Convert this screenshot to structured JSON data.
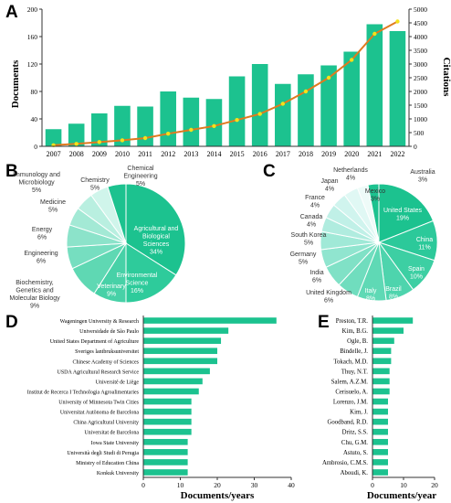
{
  "colors": {
    "bar": "#1cc28f",
    "line": "#e07a1f",
    "marker": "#f4e11a",
    "axis": "#333333",
    "pie_b": [
      "#1cc28f",
      "#2ecb9b",
      "#47d1a7",
      "#5fd8b3",
      "#76dec0",
      "#8ce3ca",
      "#a3e9d5",
      "#b9efe0",
      "#d0f5eb"
    ],
    "pie_c": [
      "#1cc28f",
      "#2cc99a",
      "#3dcfa3",
      "#4ed4ad",
      "#5fd9b5",
      "#70ddbe",
      "#80e1c6",
      "#90e5cf",
      "#a0e9d7",
      "#b0ecdf",
      "#c0f0e7",
      "#d0f4ee",
      "#e0f8f4",
      "#eefbf8"
    ]
  },
  "panel_labels": {
    "a": "A",
    "b": "B",
    "c": "C",
    "d": "D",
    "e": "E"
  },
  "chart_data": [
    {
      "id": "A",
      "type": "bar",
      "categories": [
        "2007",
        "2008",
        "2009",
        "2010",
        "2011",
        "2012",
        "2013",
        "2014",
        "2015",
        "2016",
        "2017",
        "2018",
        "2019",
        "2020",
        "2021",
        "2022"
      ],
      "series": [
        {
          "values": [
            25,
            33,
            48,
            59,
            58,
            80,
            71,
            69,
            102,
            120,
            91,
            105,
            118,
            138,
            178,
            168
          ],
          "axis": "left"
        },
        {
          "type": "line",
          "values": [
            40,
            90,
            155,
            220,
            300,
            460,
            600,
            740,
            960,
            1180,
            1550,
            2000,
            2500,
            3150,
            4100,
            4550
          ],
          "axis": "right"
        }
      ],
      "ylabel": "Documents",
      "ylabel_right": "Citations",
      "ylim": [
        0,
        200
      ],
      "yticks": [
        "0",
        "40",
        "80",
        "120",
        "160",
        "200"
      ],
      "ylim_right": [
        0,
        5000
      ],
      "yticks_right": [
        "0",
        "500",
        "1000",
        "1500",
        "2000",
        "2500",
        "3000",
        "3500",
        "4000",
        "4500",
        "5000"
      ]
    },
    {
      "id": "B",
      "type": "pie",
      "slices": [
        {
          "label": "Agricultural and Biological Sciences",
          "pct": "34%",
          "value": 34
        },
        {
          "label": "Environmental Science",
          "pct": "16%",
          "value": 16
        },
        {
          "label": "Veterinary",
          "pct": "9%",
          "value": 9
        },
        {
          "label": "Biochemistry, Genetics and Molecular Biology",
          "pct": "9%",
          "value": 9
        },
        {
          "label": "Engineering",
          "pct": "6%",
          "value": 6
        },
        {
          "label": "Energy",
          "pct": "6%",
          "value": 6
        },
        {
          "label": "Medicine",
          "pct": "5%",
          "value": 5
        },
        {
          "label": "Immunology and Microbiology",
          "pct": "5%",
          "value": 5
        },
        {
          "label": "Chemistry",
          "pct": "5%",
          "value": 5
        },
        {
          "label": "Chemical Engineering",
          "pct": "5%",
          "value": 5
        }
      ]
    },
    {
      "id": "C",
      "type": "pie",
      "slices": [
        {
          "label": "United States",
          "pct": "19%",
          "value": 19
        },
        {
          "label": "China",
          "pct": "11%",
          "value": 11
        },
        {
          "label": "Spain",
          "pct": "10%",
          "value": 10
        },
        {
          "label": "Brazil",
          "pct": "8%",
          "value": 8
        },
        {
          "label": "Italy",
          "pct": "8%",
          "value": 8
        },
        {
          "label": "United Kingdom",
          "pct": "6%",
          "value": 6
        },
        {
          "label": "India",
          "pct": "6%",
          "value": 6
        },
        {
          "label": "Germany",
          "pct": "5%",
          "value": 5
        },
        {
          "label": "South Korea",
          "pct": "5%",
          "value": 5
        },
        {
          "label": "Canada",
          "pct": "4%",
          "value": 4
        },
        {
          "label": "France",
          "pct": "4%",
          "value": 4
        },
        {
          "label": "Japan",
          "pct": "4%",
          "value": 4
        },
        {
          "label": "Netherlands",
          "pct": "4%",
          "value": 4
        },
        {
          "label": "Mexico",
          "pct": "3%",
          "value": 3
        },
        {
          "label": "Australia",
          "pct": "3%",
          "value": 3
        }
      ]
    },
    {
      "id": "D",
      "type": "bar",
      "orientation": "horizontal",
      "categories": [
        "Wageningen University & Research",
        "Universidade de São Paulo",
        "United States Department of Agriculture",
        "Sveriges lantbruksuniversitet",
        "Chinese Academy of Sciences",
        "USDA Agricultural Research Service",
        "Université de Liège",
        "Institut de Recerca I Technologia Agroalimentaries",
        "University of Minnesota Twin Cities",
        "Universitat Autònoma de Barcelona",
        "China Agricultural University",
        "Universitat de Barcelona",
        "Iowa State University",
        "Università degli Studi di Perugia",
        "Ministry of Education China",
        "Konkuk University"
      ],
      "values": [
        36,
        23,
        21,
        20,
        20,
        18,
        16,
        15,
        13,
        13,
        13,
        13,
        12,
        12,
        12,
        12
      ],
      "xlabel": "Documents/years",
      "xlim": [
        0,
        40
      ],
      "xticks": [
        "0",
        "10",
        "20",
        "30",
        "40"
      ]
    },
    {
      "id": "E",
      "type": "bar",
      "orientation": "horizontal",
      "categories": [
        "Preston, T.R.",
        "Kim, B.G.",
        "Ogle, B.",
        "Bindelle, J.",
        "Tokach, M.D.",
        "Thuy, N.T.",
        "Salem, A.Z.M.",
        "Cerisuelo, A.",
        "Lorenzo, J.M.",
        "Kim, J.",
        "Goodband, R.D.",
        "Dritz, S.S.",
        "Chu, G.M.",
        "Astuto, S.",
        "Ambrosio, C.M.S.",
        "Aboudi, K."
      ],
      "values": [
        13,
        10,
        7,
        6,
        6,
        5.5,
        5.5,
        5.5,
        5,
        5,
        5,
        5,
        5,
        5,
        5,
        5
      ],
      "xlabel": "Documents/year",
      "xlim": [
        0,
        20
      ],
      "xticks": [
        "0",
        "10",
        "20"
      ]
    }
  ]
}
